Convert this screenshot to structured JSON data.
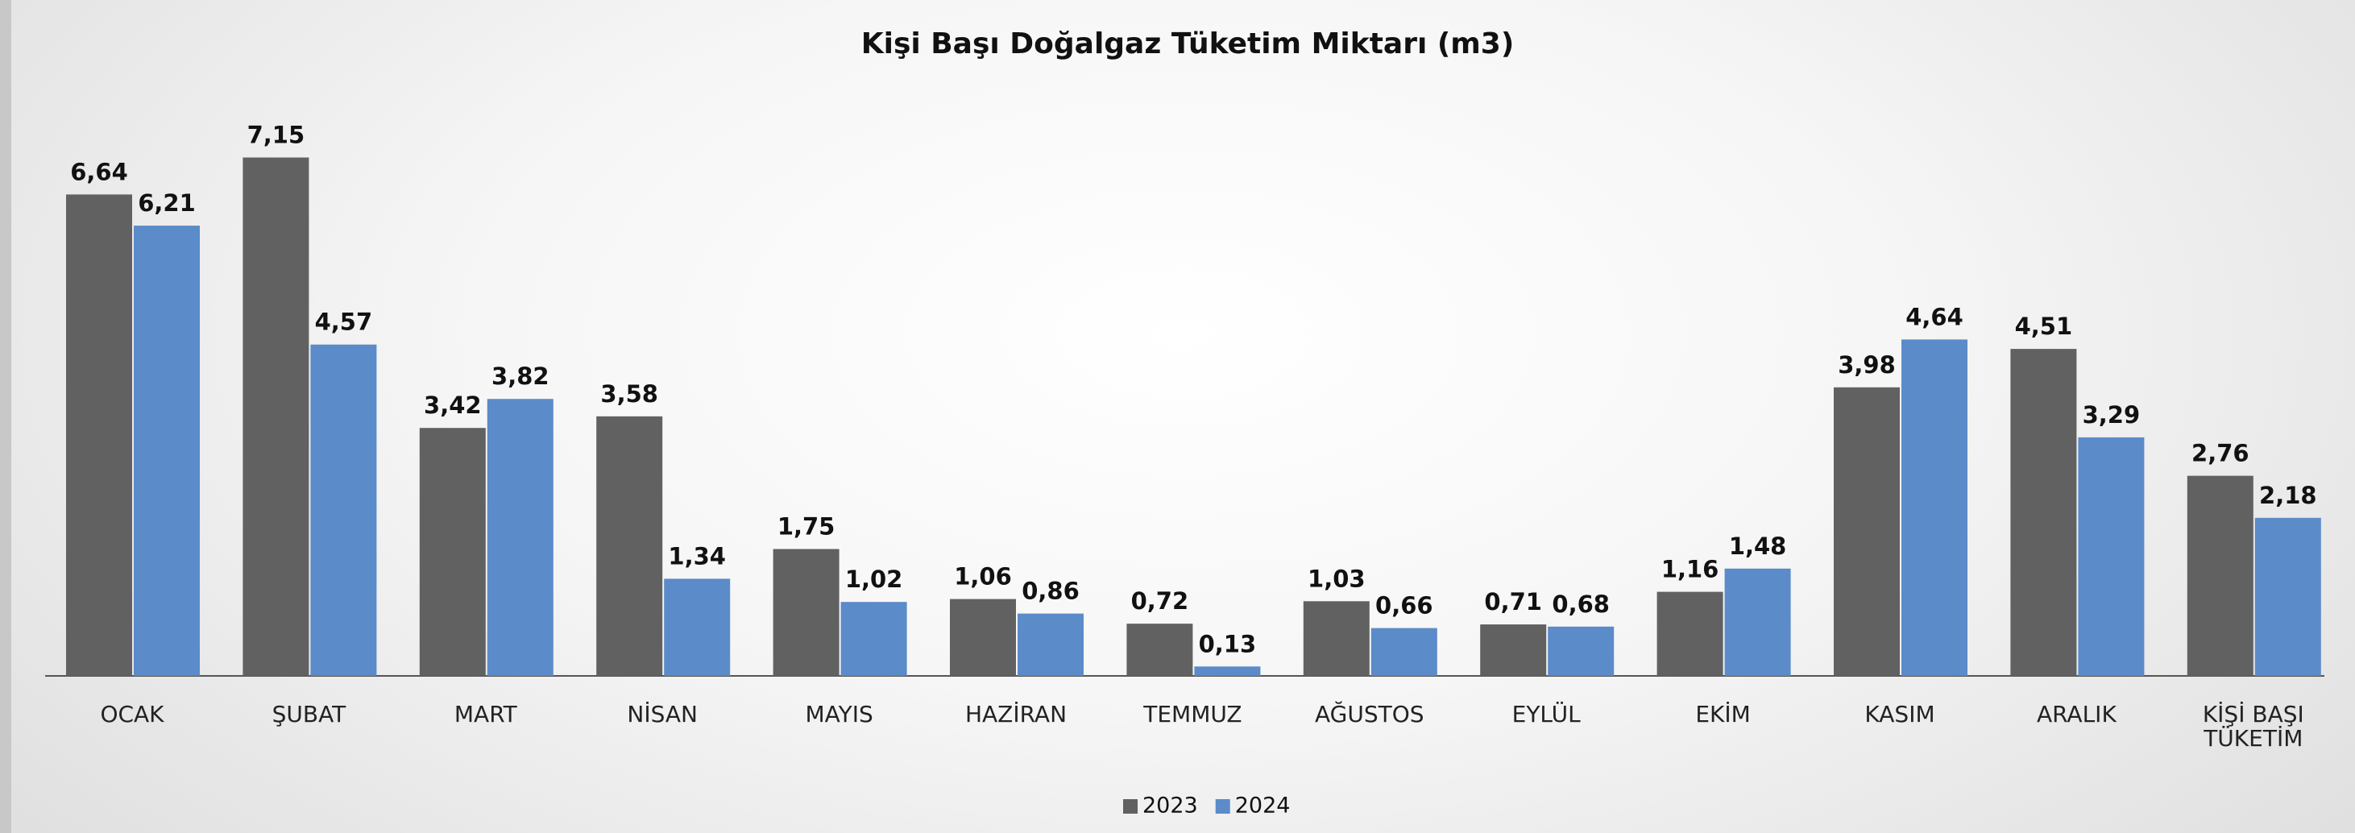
{
  "chart_data": {
    "type": "bar",
    "title": "Kişi Başı Doğalgaz Tüketim Miktarı (m3)",
    "categories": [
      "OCAK",
      "ŞUBAT",
      "MART",
      "NİSAN",
      "MAYIS",
      "HAZİRAN",
      "TEMMUZ",
      "AĞUSTOS",
      "EYLÜL",
      "EKİM",
      "KASIM",
      "ARALIK",
      "KİŞİ BAŞI TÜKETİM"
    ],
    "series": [
      {
        "name": "2023",
        "color": "#616161",
        "values": [
          6.64,
          7.15,
          3.42,
          3.58,
          1.75,
          1.06,
          0.72,
          1.03,
          0.71,
          1.16,
          3.98,
          4.51,
          2.76
        ],
        "value_labels": [
          "6,64",
          "7,15",
          "3,42",
          "3,58",
          "1,75",
          "1,06",
          "0,72",
          "1,03",
          "0,71",
          "1,16",
          "3,98",
          "4,51",
          "2,76"
        ]
      },
      {
        "name": "2024",
        "color": "#5b8bc9",
        "values": [
          6.21,
          4.57,
          3.82,
          1.34,
          1.02,
          0.86,
          0.13,
          0.66,
          0.68,
          1.48,
          4.64,
          3.29,
          2.18
        ],
        "value_labels": [
          "6,21",
          "4,57",
          "3,82",
          "1,34",
          "1,02",
          "0,86",
          "0,13",
          "0,66",
          "0,68",
          "1,48",
          "4,64",
          "3,29",
          "2,18"
        ]
      }
    ],
    "legend": "bottom"
  }
}
